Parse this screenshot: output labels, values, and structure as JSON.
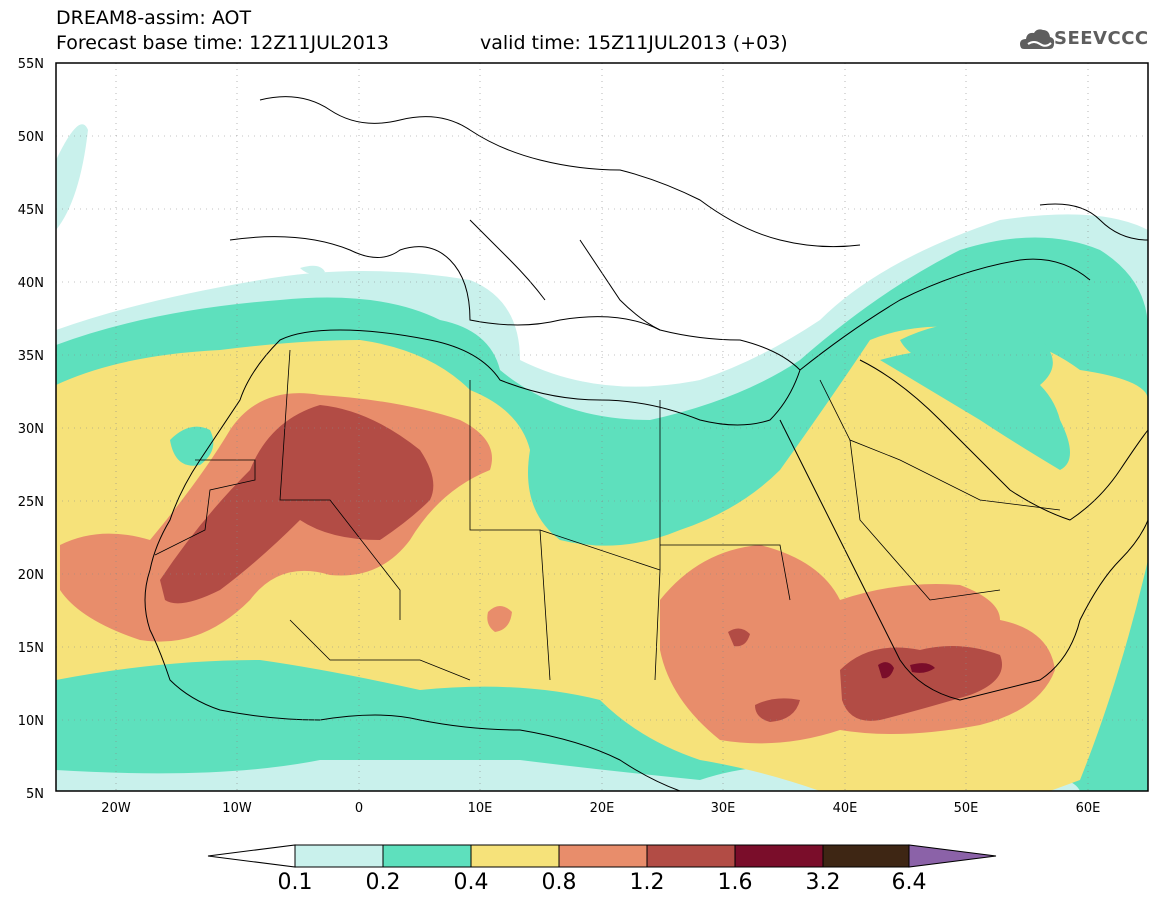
{
  "header": {
    "title": "DREAM8-assim: AOT",
    "base_time": "Forecast base time: 12Z11JUL2013",
    "valid_time": "valid time: 15Z11JUL2013 (+03)"
  },
  "logo": {
    "text": "SEEVCCC",
    "icon": "cloud-icon"
  },
  "map": {
    "projection": "cylindrical",
    "lon_range": [
      -25,
      65
    ],
    "lat_range": [
      5,
      55
    ],
    "lat_labels": [
      "55N",
      "50N",
      "45N",
      "40N",
      "35N",
      "30N",
      "25N",
      "20N",
      "15N",
      "10N",
      "5N"
    ],
    "lon_labels": [
      "20W",
      "10W",
      "0",
      "10E",
      "20E",
      "30E",
      "40E",
      "50E",
      "60E"
    ],
    "grid": "dotted",
    "field": "aerosol optical thickness"
  },
  "colorbar": {
    "levels": [
      "0.1",
      "0.2",
      "0.4",
      "0.8",
      "1.2",
      "1.6",
      "3.2",
      "6.4"
    ],
    "colors": [
      "#c9f1ec",
      "#5ee0bd",
      "#f6e27a",
      "#e88d6b",
      "#b24c45",
      "#7a0d2a",
      "#3e2614",
      "#8b62a8"
    ],
    "under_color": "#ffffff"
  }
}
